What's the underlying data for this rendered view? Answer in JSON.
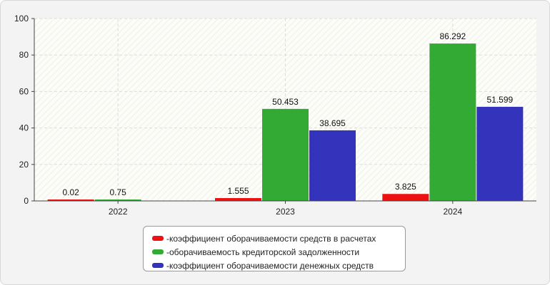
{
  "chart_data": {
    "type": "bar",
    "categories": [
      "2022",
      "2023",
      "2024"
    ],
    "series": [
      {
        "name": "коэффициент оборачиваемости средств в расчетах",
        "color": "#ee1111",
        "values": [
          0.02,
          1.555,
          3.825
        ],
        "labels": [
          "0.02",
          "1.555",
          "3.825"
        ]
      },
      {
        "name": "оборачиваемость кредиторской задолженности",
        "color": "#33aa33",
        "values": [
          0.75,
          50.453,
          86.292
        ],
        "labels": [
          "0.75",
          "50.453",
          "86.292"
        ]
      },
      {
        "name": "коэффициент оборачиваемости денежных средств",
        "color": "#3333bb",
        "values": [
          null,
          38.695,
          51.599
        ],
        "labels": [
          "",
          "38.695",
          "51.599"
        ]
      }
    ],
    "ylim": [
      0,
      100
    ],
    "yticks": [
      0,
      20,
      40,
      60,
      80,
      100
    ],
    "grid": true,
    "legend_position": "bottom",
    "legend_prefix": "- "
  }
}
